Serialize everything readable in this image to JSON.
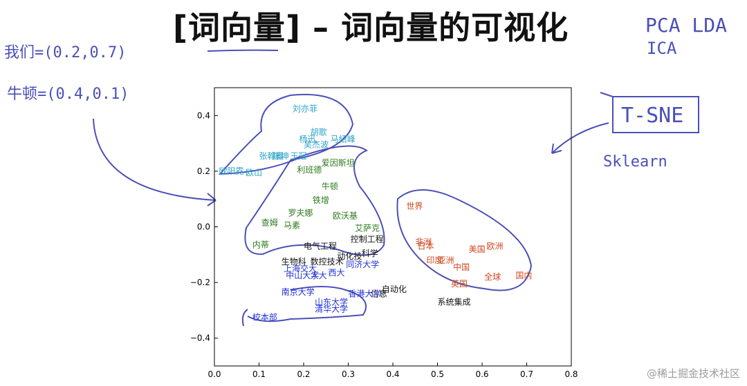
{
  "slide": {
    "title": "[词向量] – 词向量的可视化"
  },
  "annotations": {
    "top_right_line1": "PCA  LDA",
    "top_right_line2": "ICA",
    "left_line1": "我们=(0.2,0.7)",
    "left_line2": "牛顿=(0.4,0.1)",
    "tsne_label": "T-SNE",
    "sklearn_label": "Sklearn"
  },
  "watermark": "@稀土掘金技术社区",
  "colors": {
    "ink": "#4a4fb8",
    "person": "#2aa3c7",
    "scientist": "#2e7a1e",
    "country": "#d2461c",
    "technical": "#111111",
    "university": "#1f2fd6"
  },
  "chart_data": {
    "type": "scatter",
    "title": "",
    "xlabel": "",
    "ylabel": "",
    "xlim": [
      0.0,
      0.8
    ],
    "ylim": [
      -0.5,
      0.5
    ],
    "xticks": [
      "0.0",
      "0.1",
      "0.2",
      "0.3",
      "0.4",
      "0.5",
      "0.6",
      "0.7",
      "0.8"
    ],
    "yticks": [
      "0.4",
      "0.2",
      "0.0",
      "−0.2",
      "−0.4"
    ],
    "grid": false,
    "points": [
      {
        "label": "刘亦菲",
        "x": 0.175,
        "y": 0.415,
        "group": "person"
      },
      {
        "label": "胡歌",
        "x": 0.215,
        "y": 0.33,
        "group": "person"
      },
      {
        "label": "杨迅",
        "x": 0.19,
        "y": 0.305,
        "group": "person"
      },
      {
        "label": "马紹峰",
        "x": 0.26,
        "y": 0.305,
        "group": "person"
      },
      {
        "label": "吴杰波",
        "x": 0.2,
        "y": 0.285,
        "group": "person"
      },
      {
        "label": "张翰鑫",
        "x": 0.1,
        "y": 0.245,
        "group": "person"
      },
      {
        "label": "陈坤",
        "x": 0.13,
        "y": 0.245,
        "group": "person"
      },
      {
        "label": "王冠",
        "x": 0.17,
        "y": 0.245,
        "group": "person"
      },
      {
        "label": "欧阳霓",
        "x": 0.01,
        "y": 0.19,
        "group": "person"
      },
      {
        "label": "欧山",
        "x": 0.07,
        "y": 0.185,
        "group": "person"
      },
      {
        "label": "爱因斯坦",
        "x": 0.24,
        "y": 0.22,
        "group": "scientist"
      },
      {
        "label": "利班德",
        "x": 0.185,
        "y": 0.195,
        "group": "scientist"
      },
      {
        "label": "牛顿",
        "x": 0.24,
        "y": 0.135,
        "group": "scientist"
      },
      {
        "label": "铁增",
        "x": 0.22,
        "y": 0.085,
        "group": "scientist"
      },
      {
        "label": "罗夫娜",
        "x": 0.165,
        "y": 0.04,
        "group": "scientist"
      },
      {
        "label": "欧沃基",
        "x": 0.265,
        "y": 0.03,
        "group": "scientist"
      },
      {
        "label": "查姆",
        "x": 0.105,
        "y": 0.005,
        "group": "scientist"
      },
      {
        "label": "马素",
        "x": 0.155,
        "y": -0.005,
        "group": "scientist"
      },
      {
        "label": "艾萨克",
        "x": 0.315,
        "y": -0.015,
        "group": "scientist"
      },
      {
        "label": "内蒂",
        "x": 0.085,
        "y": -0.075,
        "group": "scientist"
      },
      {
        "label": "世界",
        "x": 0.43,
        "y": 0.065,
        "group": "country"
      },
      {
        "label": "非洲",
        "x": 0.45,
        "y": -0.065,
        "group": "country"
      },
      {
        "label": "日本",
        "x": 0.455,
        "y": -0.08,
        "group": "country"
      },
      {
        "label": "美国",
        "x": 0.57,
        "y": -0.09,
        "group": "country"
      },
      {
        "label": "欧洲",
        "x": 0.61,
        "y": -0.08,
        "group": "country"
      },
      {
        "label": "印度",
        "x": 0.475,
        "y": -0.13,
        "group": "country"
      },
      {
        "label": "亚洲",
        "x": 0.5,
        "y": -0.13,
        "group": "country"
      },
      {
        "label": "中国",
        "x": 0.535,
        "y": -0.155,
        "group": "country"
      },
      {
        "label": "全球",
        "x": 0.605,
        "y": -0.19,
        "group": "country"
      },
      {
        "label": "国内",
        "x": 0.675,
        "y": -0.185,
        "group": "country"
      },
      {
        "label": "英国",
        "x": 0.53,
        "y": -0.215,
        "group": "country"
      },
      {
        "label": "电气工程",
        "x": 0.2,
        "y": -0.08,
        "group": "technical"
      },
      {
        "label": "控制工程",
        "x": 0.305,
        "y": -0.055,
        "group": "technical"
      },
      {
        "label": "动化技",
        "x": 0.275,
        "y": -0.115,
        "group": "technical"
      },
      {
        "label": "科学",
        "x": 0.33,
        "y": -0.105,
        "group": "technical"
      },
      {
        "label": "生物科",
        "x": 0.15,
        "y": -0.135,
        "group": "technical"
      },
      {
        "label": "数控技术",
        "x": 0.215,
        "y": -0.135,
        "group": "technical"
      },
      {
        "label": "自动化",
        "x": 0.375,
        "y": -0.235,
        "group": "technical"
      },
      {
        "label": "信息",
        "x": 0.35,
        "y": -0.25,
        "group": "technical"
      },
      {
        "label": "系统集成",
        "x": 0.5,
        "y": -0.28,
        "group": "technical"
      },
      {
        "label": "同济大学",
        "x": 0.295,
        "y": -0.145,
        "group": "university"
      },
      {
        "label": "上海交大",
        "x": 0.155,
        "y": -0.16,
        "group": "university"
      },
      {
        "label": "西大",
        "x": 0.255,
        "y": -0.175,
        "group": "university"
      },
      {
        "label": "中山大学",
        "x": 0.16,
        "y": -0.185,
        "group": "university"
      },
      {
        "label": "人大",
        "x": 0.215,
        "y": -0.185,
        "group": "university"
      },
      {
        "label": "南京大学",
        "x": 0.15,
        "y": -0.245,
        "group": "university"
      },
      {
        "label": "香港大学",
        "x": 0.3,
        "y": -0.25,
        "group": "university"
      },
      {
        "label": "山东大学",
        "x": 0.225,
        "y": -0.28,
        "group": "university"
      },
      {
        "label": "清华大学",
        "x": 0.225,
        "y": -0.305,
        "group": "university"
      },
      {
        "label": "校本部",
        "x": 0.085,
        "y": -0.335,
        "group": "university"
      }
    ]
  }
}
